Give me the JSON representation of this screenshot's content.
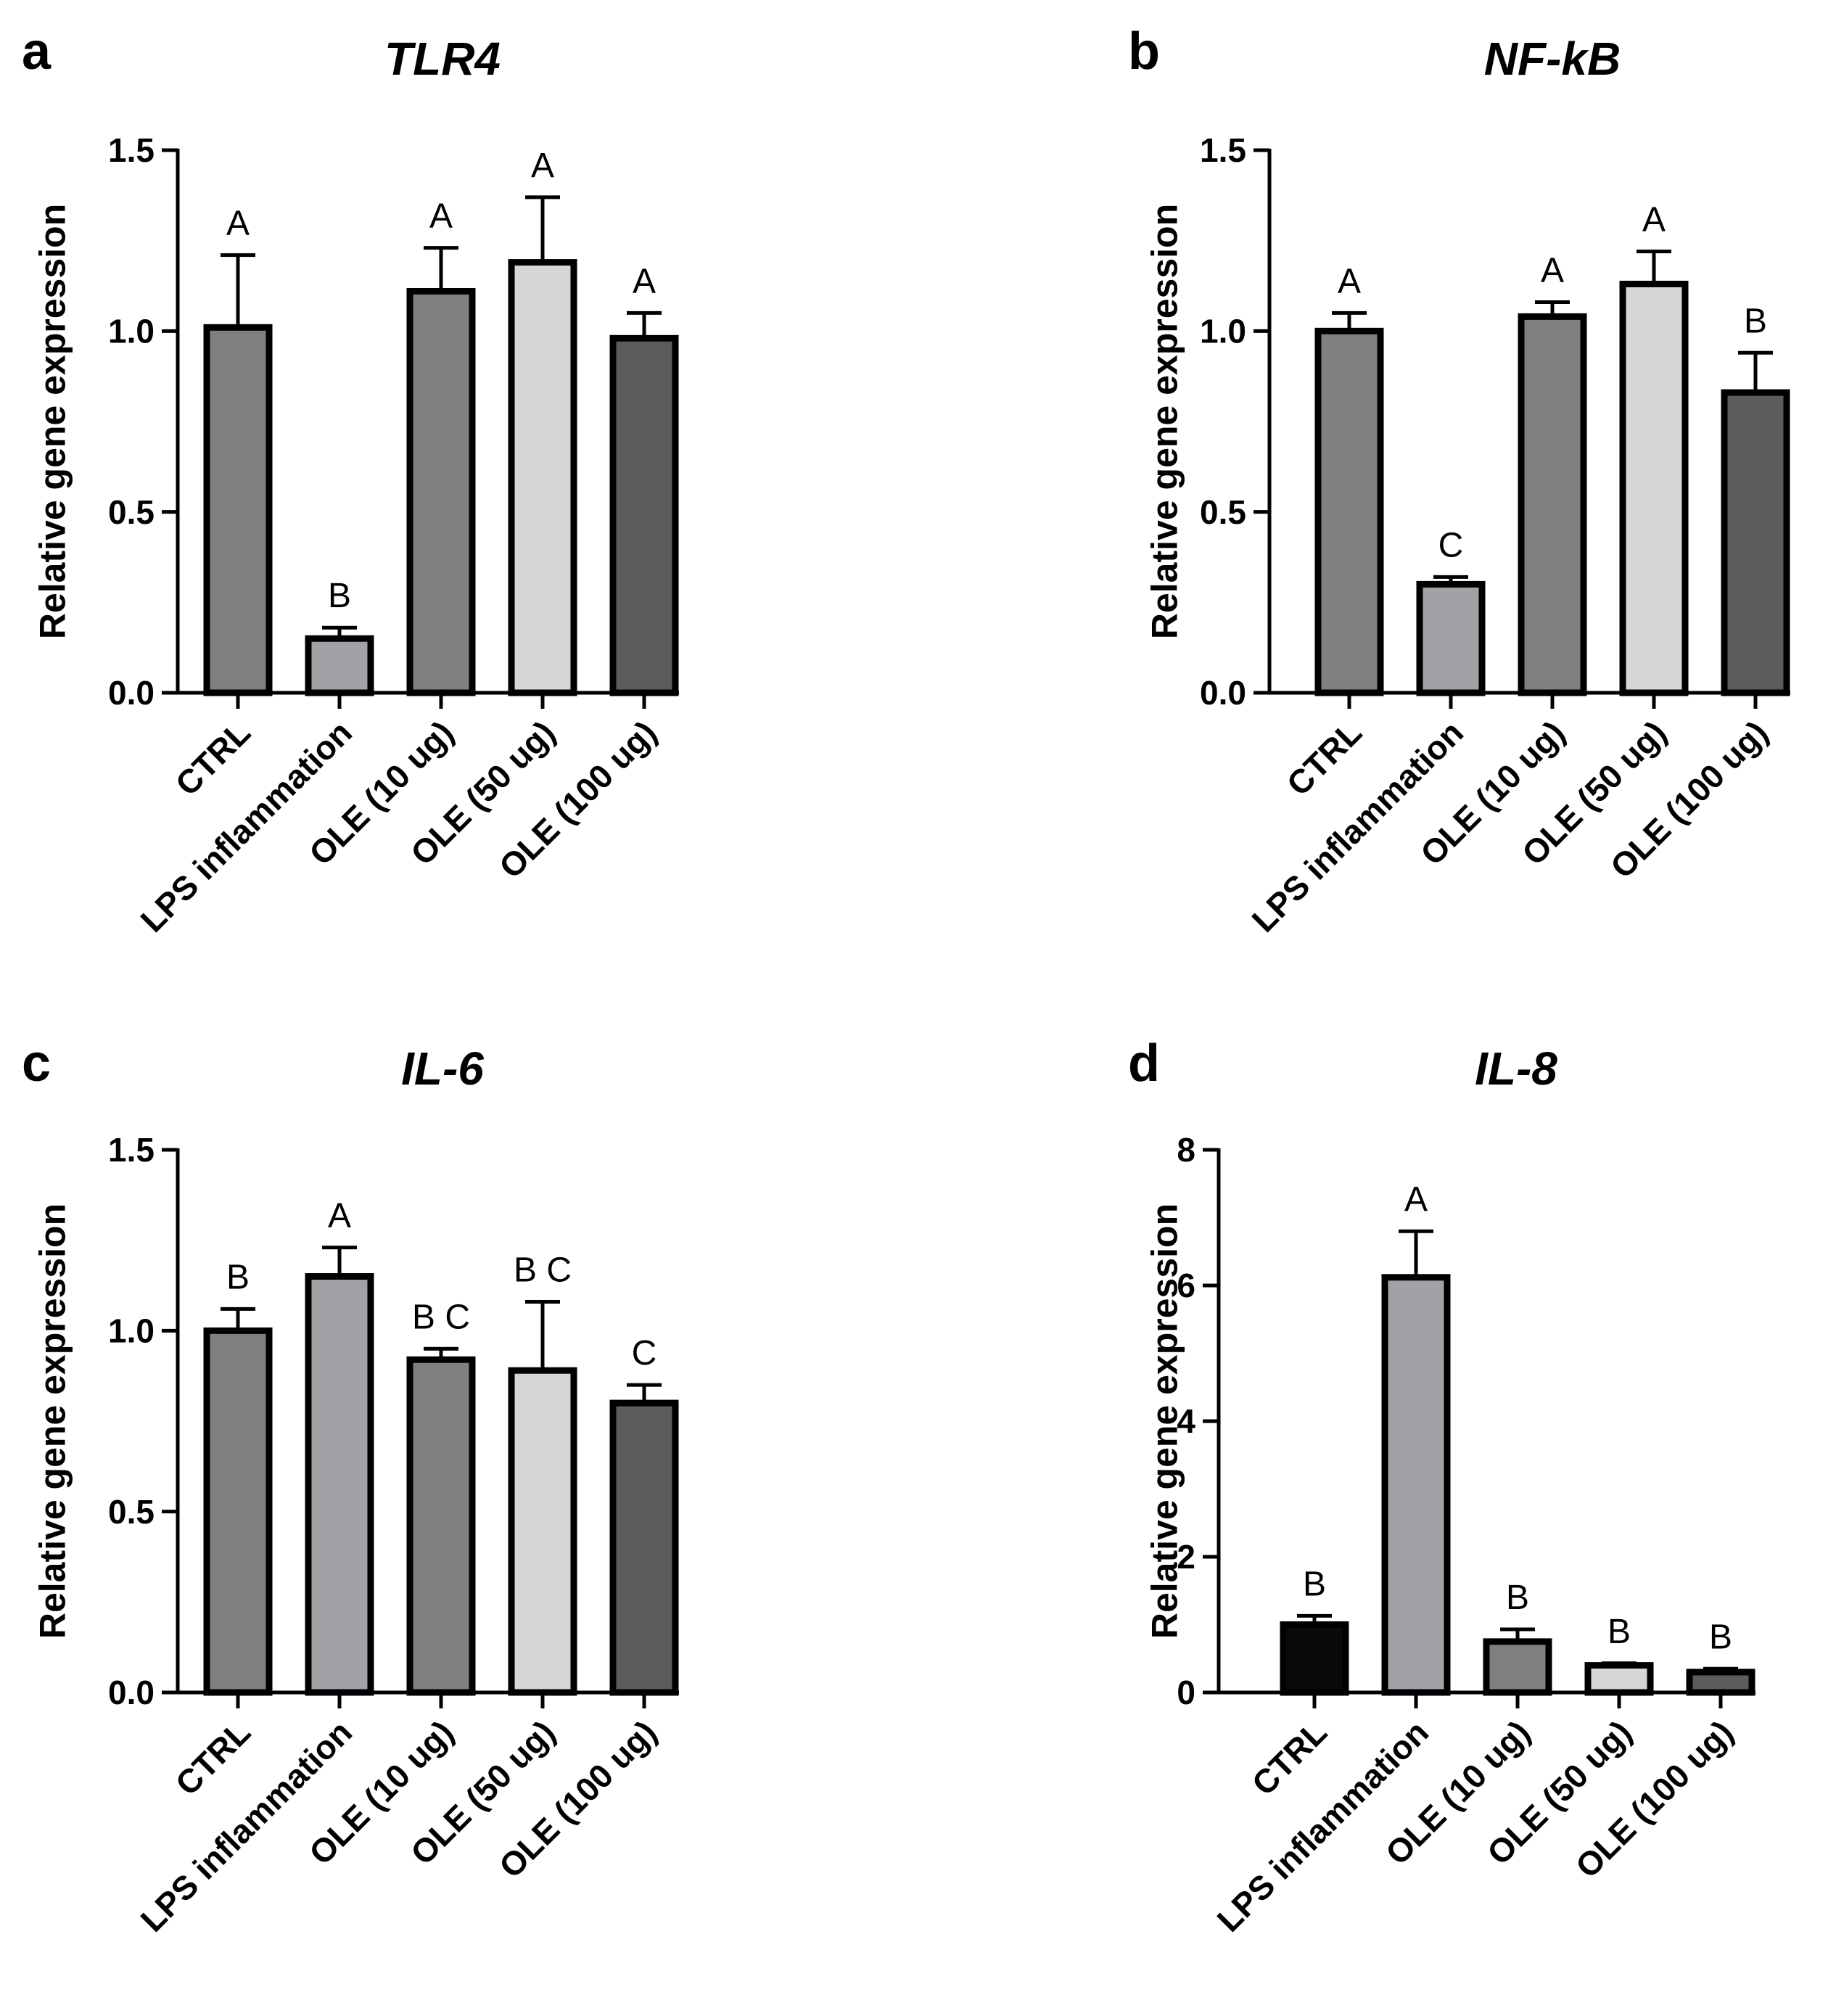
{
  "chart_data": [
    {
      "panel": "a",
      "type": "bar",
      "title": "TLR4",
      "xlabel": "",
      "ylabel": "Relative gene expression",
      "ylim": [
        0,
        1.5
      ],
      "yticks": [
        0.0,
        0.5,
        1.0,
        1.5
      ],
      "ytick_labels": [
        "0.0",
        "0.5",
        "1.0",
        "1.5"
      ],
      "categories": [
        "CTRL",
        "LPS inflammation",
        "OLE (10 ug)",
        "OLE (50 ug)",
        "OLE (100 ug)"
      ],
      "values": [
        1.01,
        0.15,
        1.11,
        1.19,
        0.98
      ],
      "errors": [
        0.2,
        0.03,
        0.12,
        0.18,
        0.07
      ],
      "significance": [
        "A",
        "B",
        "A",
        "A",
        "A"
      ],
      "colors": [
        "#808080",
        "#a2a2a6",
        "#808080",
        "#d6d6d6",
        "#5c5c5c"
      ]
    },
    {
      "panel": "b",
      "type": "bar",
      "title": "NF-kB",
      "xlabel": "",
      "ylabel": "Relative gene expression",
      "ylim": [
        0,
        1.5
      ],
      "yticks": [
        0.0,
        0.5,
        1.0,
        1.5
      ],
      "ytick_labels": [
        "0.0",
        "0.5",
        "1.0",
        "1.5"
      ],
      "categories": [
        "CTRL",
        "LPS inflammation",
        "OLE (10 ug)",
        "OLE (50 ug)",
        "OLE (100 ug)"
      ],
      "values": [
        1.0,
        0.3,
        1.04,
        1.13,
        0.83
      ],
      "errors": [
        0.05,
        0.02,
        0.04,
        0.09,
        0.11
      ],
      "significance": [
        "A",
        "C",
        "A",
        "A",
        "B"
      ],
      "colors": [
        "#808080",
        "#a2a2a6",
        "#808080",
        "#d6d6d6",
        "#5c5c5c"
      ]
    },
    {
      "panel": "c",
      "type": "bar",
      "title": "IL-6",
      "xlabel": "",
      "ylabel": "Relative gene expression",
      "ylim": [
        0,
        1.5
      ],
      "yticks": [
        0.0,
        0.5,
        1.0,
        1.5
      ],
      "ytick_labels": [
        "0.0",
        "0.5",
        "1.0",
        "1.5"
      ],
      "categories": [
        "CTRL",
        "LPS inflammation",
        "OLE (10 ug)",
        "OLE (50 ug)",
        "OLE (100 ug)"
      ],
      "values": [
        1.0,
        1.15,
        0.92,
        0.89,
        0.8
      ],
      "errors": [
        0.06,
        0.08,
        0.03,
        0.19,
        0.05
      ],
      "significance": [
        "B",
        "A",
        "B C",
        "B C",
        "C"
      ],
      "colors": [
        "#808080",
        "#a2a2a6",
        "#808080",
        "#d6d6d6",
        "#5c5c5c"
      ]
    },
    {
      "panel": "d",
      "type": "bar",
      "title": "IL-8",
      "xlabel": "",
      "ylabel": "Relative gene expression",
      "ylim": [
        0,
        8
      ],
      "yticks": [
        0,
        2,
        4,
        6,
        8
      ],
      "ytick_labels": [
        "0",
        "2",
        "4",
        "6",
        "8"
      ],
      "categories": [
        "CTRL",
        "LPS inflammation",
        "OLE (10 ug)",
        "OLE (50 ug)",
        "OLE (100 ug)"
      ],
      "values": [
        1.0,
        6.12,
        0.75,
        0.4,
        0.3
      ],
      "errors": [
        0.13,
        0.68,
        0.18,
        0.03,
        0.05
      ],
      "significance": [
        "B",
        "A",
        "B",
        "B",
        "B"
      ],
      "colors": [
        "#0a0a0a",
        "#a2a2a6",
        "#808080",
        "#d6d6d6",
        "#5c5c5c"
      ]
    }
  ]
}
